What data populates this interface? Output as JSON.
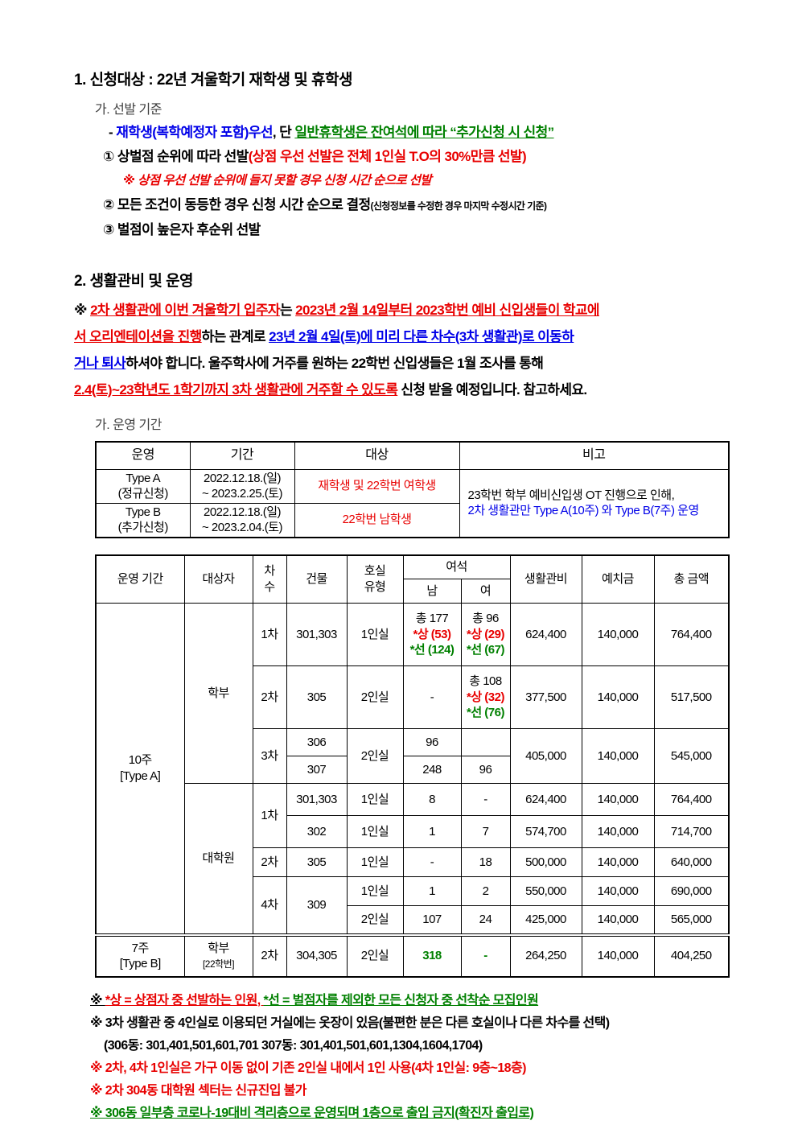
{
  "palette": {
    "red": "#e80000",
    "blue": "#0000e8",
    "green": "#008000",
    "black": "#000000",
    "gray": "#3f3f3f"
  },
  "section1": {
    "title": "1. 신청대상 : 22년 겨울학기 재학생 및 휴학생",
    "sub": "가. 선발 기준",
    "priority_line": [
      {
        "t": "- ",
        "c": "#000000"
      },
      {
        "t": "재학생(복학예정자 포함)우선",
        "c": "#0000e8"
      },
      {
        "t": ", 단 ",
        "c": "#000000"
      },
      {
        "t": "일반휴학생은 잔여석에 따라 “추가신청 시 신청”",
        "c": "#008000",
        "u": 1
      }
    ],
    "item1": [
      {
        "t": "① 상벌점 순위에 따라 선발",
        "c": "#000000"
      },
      {
        "t": "(상점 우선 선발은 전체 1인실 T.O의 30%만큼 선발)",
        "c": "#e80000"
      }
    ],
    "note1": [
      {
        "t": "※ 상점 우선 선발 순위에 들지 못할 경우 신청 시간 순으로 선발",
        "c": "#e80000",
        "i": 1
      }
    ],
    "item2": [
      {
        "t": "② 모든 조건이 동등한 경우 신청 시간 순으로 결정",
        "c": "#000000"
      },
      {
        "t": "(신청정보를 수정한 경우 마지막 수정시간 기준)",
        "c": "#000000",
        "s": 1
      }
    ],
    "item3": [
      {
        "t": "③ 벌점이 높은자 후순위 선발",
        "c": "#000000"
      }
    ]
  },
  "section2": {
    "title": "2. 생활관비 및 운영",
    "paragraph": [
      {
        "t": "※ ",
        "c": "#000000"
      },
      {
        "t": "2차 생활관에 이번 겨울학기 입주자",
        "c": "#e80000",
        "u": 1
      },
      {
        "t": "는 ",
        "c": "#000000"
      },
      {
        "t": "2023년 2월 14일부터 2023학번 예비 신입생들이 학교에",
        "c": "#e80000",
        "u": 1
      },
      {
        "br": true
      },
      {
        "t": "서 오리엔테이션을 진행",
        "c": "#e80000",
        "u": 1
      },
      {
        "t": "하는 관계로 ",
        "c": "#000000"
      },
      {
        "t": "23년 2월 4일(토)에 미리 다른 차수(3차 생활관)로 이동하",
        "c": "#0000e8",
        "u": 1
      },
      {
        "br": true
      },
      {
        "t": "거나 퇴사",
        "c": "#0000e8",
        "u": 1
      },
      {
        "t": "하셔야 합니다. 울주학사에 거주를 원하는 22학번 신입생들은 1월 조사를 통해",
        "c": "#000000"
      },
      {
        "br": true
      },
      {
        "t": "2.4(토)~23학년도 1학기까지 3차 생활관에 거주할 수 있도록",
        "c": "#e80000",
        "u": 1
      },
      {
        "t": " 신청 받을 예정입니다. 참고하세요.",
        "c": "#000000"
      }
    ],
    "sub": "가. 운영 기간"
  },
  "table_operation": {
    "headers": {
      "run": "운영",
      "period": "기간",
      "target": "대상",
      "note": "비고"
    },
    "rowA": {
      "type": "Type A\n(정규신청)",
      "period": "2022.12.18.(일)\n~ 2023.2.25.(토)",
      "target": [
        {
          "t": "재학생 및 22학번 여학생",
          "c": "#e80000"
        }
      ]
    },
    "rowB": {
      "type": "Type B\n(추가신청)",
      "period": "2022.12.18.(일)\n~ 2023.2.04.(토)",
      "target": [
        {
          "t": "22학번 남학생",
          "c": "#e80000"
        }
      ]
    },
    "note": [
      {
        "t": "23학번 학부 예비신입생 OT 진행으로 인해,",
        "c": "#000000"
      },
      {
        "br": true
      },
      {
        "t": "2차 생활관만 Type A(10주) 와 Type B(7주) 운영",
        "c": "#0000e8"
      }
    ]
  },
  "table_fees": {
    "header": {
      "period": "운영 기간",
      "target": "대상자",
      "round": "차\n수",
      "building": "건물",
      "room": "호실\n유형",
      "vacancy": "여석",
      "male": "남",
      "female": "여",
      "fee": "생활관비",
      "deposit": "예치금",
      "total": "총 금액"
    },
    "group_typeA": "10주\n[Type A]",
    "group_typeB": "7주\n[Type B]",
    "undergrad": "학부",
    "grad": "대학원",
    "undergrad22": [
      {
        "t": "학부"
      },
      {
        "br": true
      },
      {
        "t": "[22학번]",
        "s": 1
      }
    ],
    "rows": {
      "r1": {
        "round": "1차",
        "bld": "301,303",
        "room": "1인실",
        "m": [
          {
            "t": "총 177"
          },
          {
            "br": true
          },
          {
            "t": "*상 (53)",
            "c": "#e80000",
            "b": 1
          },
          {
            "br": true
          },
          {
            "t": "*선 (124)",
            "c": "#008000",
            "b": 1
          }
        ],
        "f": [
          {
            "t": "총 96"
          },
          {
            "br": true
          },
          {
            "t": "*상 (29)",
            "c": "#e80000",
            "b": 1
          },
          {
            "br": true
          },
          {
            "t": "*선 (67)",
            "c": "#008000",
            "b": 1
          }
        ],
        "fee": "624,400",
        "dep": "140,000",
        "tot": "764,400"
      },
      "r2": {
        "round": "2차",
        "bld": "305",
        "room": "2인실",
        "m": "-",
        "f": [
          {
            "t": "총 108"
          },
          {
            "br": true
          },
          {
            "t": "*상 (32)",
            "c": "#e80000",
            "b": 1
          },
          {
            "br": true
          },
          {
            "t": "*선 (76)",
            "c": "#008000",
            "b": 1
          }
        ],
        "fee": "377,500",
        "dep": "140,000",
        "tot": "517,500"
      },
      "r3": {
        "round": "3차",
        "bld": "306",
        "room": "2인실",
        "m": "96",
        "f": "",
        "fee": "405,000",
        "dep": "140,000",
        "tot": "545,000"
      },
      "r4": {
        "bld": "307",
        "m": "248",
        "f": "96"
      },
      "r5": {
        "round": "1차",
        "bld": "301,303",
        "room": "1인실",
        "m": "8",
        "f": "-",
        "fee": "624,400",
        "dep": "140,000",
        "tot": "764,400"
      },
      "r6": {
        "bld": "302",
        "room": "1인실",
        "m": "1",
        "f": "7",
        "fee": "574,700",
        "dep": "140,000",
        "tot": "714,700"
      },
      "r7": {
        "round": "2차",
        "bld": "305",
        "room": "1인실",
        "m": "-",
        "f": "18",
        "fee": "500,000",
        "dep": "140,000",
        "tot": "640,000"
      },
      "r8": {
        "round": "4차",
        "bld": "309",
        "room": "1인실",
        "m": "1",
        "f": "2",
        "fee": "550,000",
        "dep": "140,000",
        "tot": "690,000"
      },
      "r9": {
        "room": "2인실",
        "m": "107",
        "f": "24",
        "fee": "425,000",
        "dep": "140,000",
        "tot": "565,000"
      },
      "r10": {
        "round": "2차",
        "bld": "304,305",
        "room": "2인실",
        "m": [
          {
            "t": "318",
            "c": "#008000",
            "b": 1
          }
        ],
        "f": [
          {
            "t": "-",
            "c": "#008000",
            "b": 1
          }
        ],
        "fee": "264,250",
        "dep": "140,000",
        "tot": "404,250"
      }
    }
  },
  "footnotes": {
    "f1": [
      {
        "t": "※ ",
        "c": "#000000",
        "u": 1
      },
      {
        "t": "*상 = 상점자 중 선발하는 인원",
        "c": "#e80000",
        "u": 1
      },
      {
        "t": ", ",
        "c": "#e80000",
        "u": 1
      },
      {
        "t": "*선 = 벌점자를 제외한 모든 신청자 중 선착순 모집인원",
        "c": "#008000",
        "u": 1
      }
    ],
    "f2": [
      {
        "t": "※ 3차 생활관 중 4인실로 이용되던 거실에는 옷장이 있음(불편한 분은 다른 호실이나 다른 차수를 선택)",
        "c": "#000000"
      }
    ],
    "f3": [
      {
        "t": "(306동: 301,401,501,601,701  307동: 301,401,501,601,1304,1604,1704)",
        "c": "#000000"
      }
    ],
    "f4": [
      {
        "t": "※ 2차, 4차 1인실은 가구 이동 없이 기존 2인실 내에서 1인 사용(4차 1인실: 9층~18층)",
        "c": "#e80000"
      }
    ],
    "f5": [
      {
        "t": "※ 2차 304동 대학원 섹터는 신규진입 불가",
        "c": "#e80000"
      }
    ],
    "f6": [
      {
        "t": "※ 306동 일부층 코로나-19대비 격리층으로 운영되며 1층으로 출입 금지(확진자 출입로)",
        "c": "#008000",
        "u": 1
      }
    ]
  }
}
